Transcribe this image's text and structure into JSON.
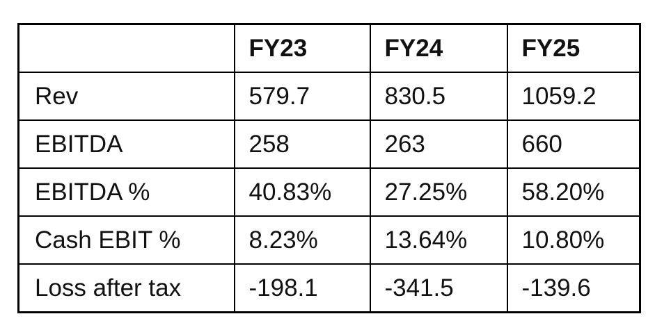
{
  "table": {
    "columns": [
      "FY23",
      "FY24",
      "FY25"
    ],
    "rows": [
      [
        "Rev",
        "579.7",
        "830.5",
        "1059.2"
      ],
      [
        "EBITDA",
        "258",
        "263",
        "660"
      ],
      [
        "EBITDA %",
        "40.83%",
        "27.25%",
        "58.20%"
      ],
      [
        "Cash EBIT %",
        "8.23%",
        "13.64%",
        "10.80%"
      ],
      [
        "Loss after tax",
        "-198.1",
        "-341.5",
        "-139.6"
      ]
    ]
  }
}
